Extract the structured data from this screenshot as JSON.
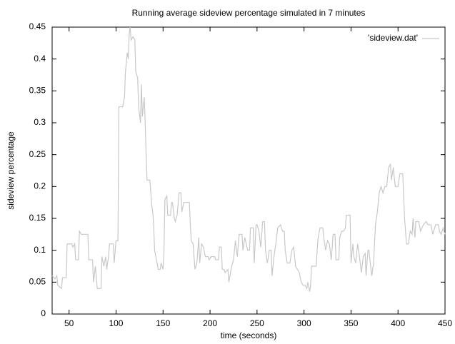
{
  "chart_data": {
    "type": "line",
    "title": "Running average sideview percentage simulated in 7 minutes",
    "xlabel": "time (seconds)",
    "ylabel": "sideview percentage",
    "xlim": [
      32,
      450
    ],
    "ylim": [
      0,
      0.45
    ],
    "xticks": [
      50,
      100,
      150,
      200,
      250,
      300,
      350,
      400,
      450
    ],
    "yticks": [
      0,
      0.05,
      0.1,
      0.15,
      0.2,
      0.25,
      0.3,
      0.35,
      0.4,
      0.45
    ],
    "legend": "upper right",
    "grid": false,
    "x": [
      32,
      35,
      37,
      38,
      42,
      43,
      47,
      48,
      53,
      54,
      56,
      57,
      60,
      61,
      63,
      70,
      71,
      75,
      76,
      78,
      80,
      84,
      85,
      87,
      89,
      90,
      92,
      93,
      97,
      98,
      100,
      102,
      103,
      107,
      109,
      110,
      112,
      113,
      114,
      115,
      116,
      118,
      120,
      121,
      123,
      124,
      126,
      127,
      128,
      130,
      131,
      132,
      133,
      136,
      137,
      138,
      139,
      140,
      141,
      143,
      145,
      147,
      148,
      150,
      151,
      152,
      154,
      155,
      158,
      159,
      160,
      162,
      163,
      165,
      167,
      169,
      170,
      172,
      175,
      178,
      179,
      180,
      182,
      184,
      186,
      188,
      189,
      191,
      193,
      195,
      198,
      199,
      201,
      205,
      206,
      209,
      210,
      212,
      213,
      215,
      216,
      219,
      220,
      223,
      225,
      227,
      229,
      231,
      234,
      235,
      237,
      240,
      242,
      243,
      246,
      247,
      249,
      250,
      252,
      254,
      256,
      258,
      259,
      261,
      263,
      265,
      266,
      268,
      270,
      272,
      275,
      277,
      279,
      280,
      282,
      285,
      287,
      289,
      291,
      293,
      295,
      297,
      299,
      301,
      303,
      304,
      306,
      307,
      308,
      313,
      314,
      315,
      317,
      320,
      321,
      323,
      325,
      327,
      329,
      331,
      333,
      334,
      337,
      338,
      340,
      342,
      344,
      345,
      349,
      350,
      352,
      353,
      355,
      357,
      359,
      361,
      363,
      365,
      366,
      368,
      369,
      372,
      374,
      376,
      378,
      380,
      382,
      384,
      386,
      388,
      390,
      392,
      393,
      395,
      397,
      400,
      402,
      405,
      407,
      408,
      409,
      411,
      413,
      415,
      416,
      418,
      419,
      422,
      424,
      427,
      430,
      432,
      435,
      437,
      440,
      443,
      444,
      446,
      448,
      450
    ],
    "series": [
      {
        "name": "'sideview.dat'",
        "color": "#c8c8c8",
        "values": [
          0.06,
          0.055,
          0.06,
          0.045,
          0.04,
          0.057,
          0.057,
          0.11,
          0.11,
          0.105,
          0.11,
          0.085,
          0.085,
          0.13,
          0.125,
          0.125,
          0.085,
          0.085,
          0.05,
          0.075,
          0.04,
          0.04,
          0.09,
          0.075,
          0.09,
          0.07,
          0.09,
          0.11,
          0.11,
          0.08,
          0.115,
          0.115,
          0.325,
          0.325,
          0.34,
          0.38,
          0.41,
          0.4,
          0.44,
          0.45,
          0.43,
          0.435,
          0.43,
          0.38,
          0.37,
          0.325,
          0.3,
          0.36,
          0.31,
          0.34,
          0.3,
          0.25,
          0.21,
          0.21,
          0.19,
          0.17,
          0.16,
          0.14,
          0.1,
          0.085,
          0.07,
          0.07,
          0.08,
          0.07,
          0.1,
          0.18,
          0.185,
          0.155,
          0.155,
          0.175,
          0.175,
          0.15,
          0.145,
          0.155,
          0.19,
          0.19,
          0.16,
          0.175,
          0.175,
          0.175,
          0.14,
          0.115,
          0.11,
          0.07,
          0.08,
          0.12,
          0.08,
          0.11,
          0.105,
          0.09,
          0.09,
          0.085,
          0.09,
          0.09,
          0.085,
          0.085,
          0.105,
          0.105,
          0.07,
          0.07,
          0.065,
          0.07,
          0.05,
          0.075,
          0.085,
          0.115,
          0.09,
          0.125,
          0.125,
          0.1,
          0.12,
          0.1,
          0.1,
          0.135,
          0.135,
          0.08,
          0.14,
          0.14,
          0.13,
          0.105,
          0.145,
          0.145,
          0.1,
          0.08,
          0.1,
          0.1,
          0.06,
          0.09,
          0.11,
          0.135,
          0.14,
          0.13,
          0.13,
          0.1,
          0.08,
          0.08,
          0.1,
          0.105,
          0.075,
          0.07,
          0.065,
          0.05,
          0.045,
          0.045,
          0.04,
          0.05,
          0.035,
          0.045,
          0.075,
          0.075,
          0.1,
          0.12,
          0.135,
          0.135,
          0.12,
          0.1,
          0.115,
          0.11,
          0.085,
          0.125,
          0.125,
          0.085,
          0.085,
          0.12,
          0.13,
          0.13,
          0.135,
          0.155,
          0.155,
          0.08,
          0.11,
          0.09,
          0.08,
          0.11,
          0.09,
          0.065,
          0.09,
          0.095,
          0.06,
          0.1,
          0.1,
          0.06,
          0.08,
          0.14,
          0.16,
          0.19,
          0.2,
          0.19,
          0.2,
          0.2,
          0.23,
          0.235,
          0.21,
          0.23,
          0.2,
          0.2,
          0.22,
          0.22,
          0.15,
          0.13,
          0.11,
          0.11,
          0.13,
          0.125,
          0.15,
          0.12,
          0.145,
          0.145,
          0.13,
          0.14,
          0.145,
          0.14,
          0.14,
          0.125,
          0.14,
          0.14,
          0.13,
          0.125,
          0.135,
          0.125
        ]
      }
    ]
  }
}
